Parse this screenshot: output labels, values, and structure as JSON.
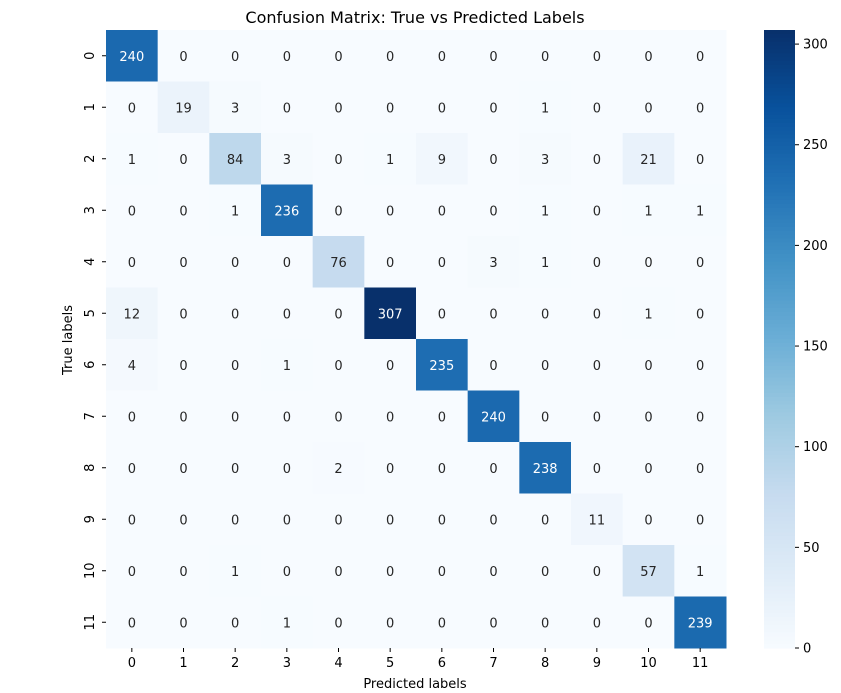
{
  "chart_data": {
    "type": "heatmap",
    "title": "Confusion Matrix: True vs Predicted Labels",
    "xlabel": "Predicted labels",
    "ylabel": "True labels",
    "x_categories": [
      "0",
      "1",
      "2",
      "3",
      "4",
      "5",
      "6",
      "7",
      "8",
      "9",
      "10",
      "11"
    ],
    "y_categories": [
      "0",
      "1",
      "2",
      "3",
      "4",
      "5",
      "6",
      "7",
      "8",
      "9",
      "10",
      "11"
    ],
    "values": [
      [
        240,
        0,
        0,
        0,
        0,
        0,
        0,
        0,
        0,
        0,
        0,
        0
      ],
      [
        0,
        19,
        3,
        0,
        0,
        0,
        0,
        0,
        1,
        0,
        0,
        0
      ],
      [
        1,
        0,
        84,
        3,
        0,
        1,
        9,
        0,
        3,
        0,
        21,
        0
      ],
      [
        0,
        0,
        1,
        236,
        0,
        0,
        0,
        0,
        1,
        0,
        1,
        1
      ],
      [
        0,
        0,
        0,
        0,
        76,
        0,
        0,
        3,
        1,
        0,
        0,
        0
      ],
      [
        12,
        0,
        0,
        0,
        0,
        307,
        0,
        0,
        0,
        0,
        1,
        0
      ],
      [
        4,
        0,
        0,
        1,
        0,
        0,
        235,
        0,
        0,
        0,
        0,
        0
      ],
      [
        0,
        0,
        0,
        0,
        0,
        0,
        0,
        240,
        0,
        0,
        0,
        0
      ],
      [
        0,
        0,
        0,
        0,
        2,
        0,
        0,
        0,
        238,
        0,
        0,
        0
      ],
      [
        0,
        0,
        0,
        0,
        0,
        0,
        0,
        0,
        0,
        11,
        0,
        0
      ],
      [
        0,
        0,
        1,
        0,
        0,
        0,
        0,
        0,
        0,
        0,
        57,
        1
      ],
      [
        0,
        0,
        0,
        1,
        0,
        0,
        0,
        0,
        0,
        0,
        0,
        239
      ]
    ],
    "colorbar": {
      "min": 0,
      "max": 307,
      "ticks": [
        0,
        50,
        100,
        150,
        200,
        250,
        300
      ],
      "colormap": "Blues"
    },
    "annotate": true
  }
}
